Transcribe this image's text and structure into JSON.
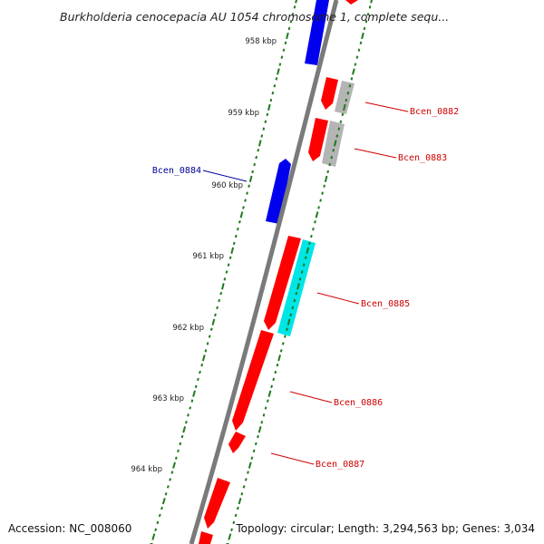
{
  "title": "Burkholderia cenocepacia AU 1054 chromosome 1, complete sequ...",
  "footer": {
    "accession": "Accession: NC_008060",
    "summary": "Topology: circular; Length: 3,294,563 bp; Genes: 3,034"
  },
  "colors": {
    "backbone": "#7a7a7a",
    "ticks": "#1f7a1f",
    "forward_gene": "#ff0000",
    "reverse_gene": "#0000ee",
    "cyan_gene": "#00e5e5",
    "gray_gene": "#b4b4b4",
    "label_red": "#d00000",
    "label_blue": "#000099"
  },
  "scale_labels": [
    "958 kbp",
    "959 kbp",
    "960 kbp",
    "961 kbp",
    "962 kbp",
    "963 kbp",
    "964 kbp"
  ],
  "labeled_genes": [
    {
      "name": "Bcen_0882",
      "strand": "forward",
      "color": "red"
    },
    {
      "name": "Bcen_0883",
      "strand": "forward",
      "color": "red"
    },
    {
      "name": "Bcen_0884",
      "strand": "reverse",
      "color": "blue"
    },
    {
      "name": "Bcen_0885",
      "strand": "forward",
      "color": "red"
    },
    {
      "name": "Bcen_0886",
      "strand": "forward",
      "color": "red"
    },
    {
      "name": "Bcen_0887",
      "strand": "forward",
      "color": "red"
    }
  ]
}
